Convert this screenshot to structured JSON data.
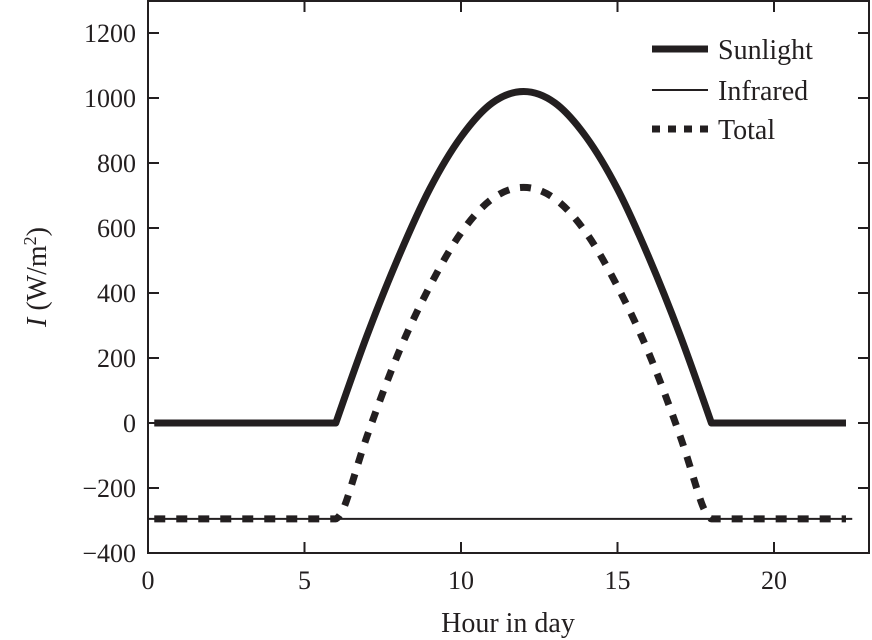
{
  "chart_data": {
    "type": "line",
    "xlabel": "Hour in day",
    "ylabel_italic": "I",
    "ylabel_rest": " (W/m",
    "ylabel_sup": "2",
    "ylabel_close": ")",
    "xlim": [
      0,
      22.5
    ],
    "ylim": [
      -400,
      1300
    ],
    "xticks": [
      0,
      5,
      10,
      15,
      20
    ],
    "xtick_labels": [
      "0",
      "5",
      "10",
      "15",
      "20"
    ],
    "yticks": [
      -400,
      -200,
      0,
      200,
      400,
      600,
      800,
      1000,
      1200
    ],
    "ytick_labels": [
      "−400",
      "−200",
      "0",
      "200",
      "400",
      "600",
      "800",
      "1000",
      "1200"
    ],
    "grid": false,
    "legend_position": "top-right",
    "color": "#231f20",
    "series": [
      {
        "name": "Sunlight",
        "style": "solid-thick",
        "x": [
          0.2,
          6,
          7,
          8,
          9,
          10,
          11,
          12,
          13,
          14,
          15,
          16,
          17,
          18,
          22.3
        ],
        "y": [
          0,
          0,
          270,
          510,
          720,
          880,
          985,
          1020,
          985,
          880,
          720,
          510,
          270,
          0,
          0
        ]
      },
      {
        "name": "Infrared",
        "style": "solid-thin",
        "x": [
          0,
          22.5
        ],
        "y": [
          -295,
          -295
        ]
      },
      {
        "name": "Total",
        "style": "dotted-thick",
        "x": [
          0.2,
          6,
          6.3,
          7,
          8,
          9,
          10,
          11,
          12,
          13,
          14,
          15,
          16,
          17,
          17.7,
          18,
          22.3
        ],
        "y": [
          -295,
          -295,
          -250,
          -40,
          215,
          420,
          585,
          690,
          725,
          690,
          585,
          420,
          215,
          -40,
          -250,
          -295,
          -295
        ]
      }
    ]
  }
}
